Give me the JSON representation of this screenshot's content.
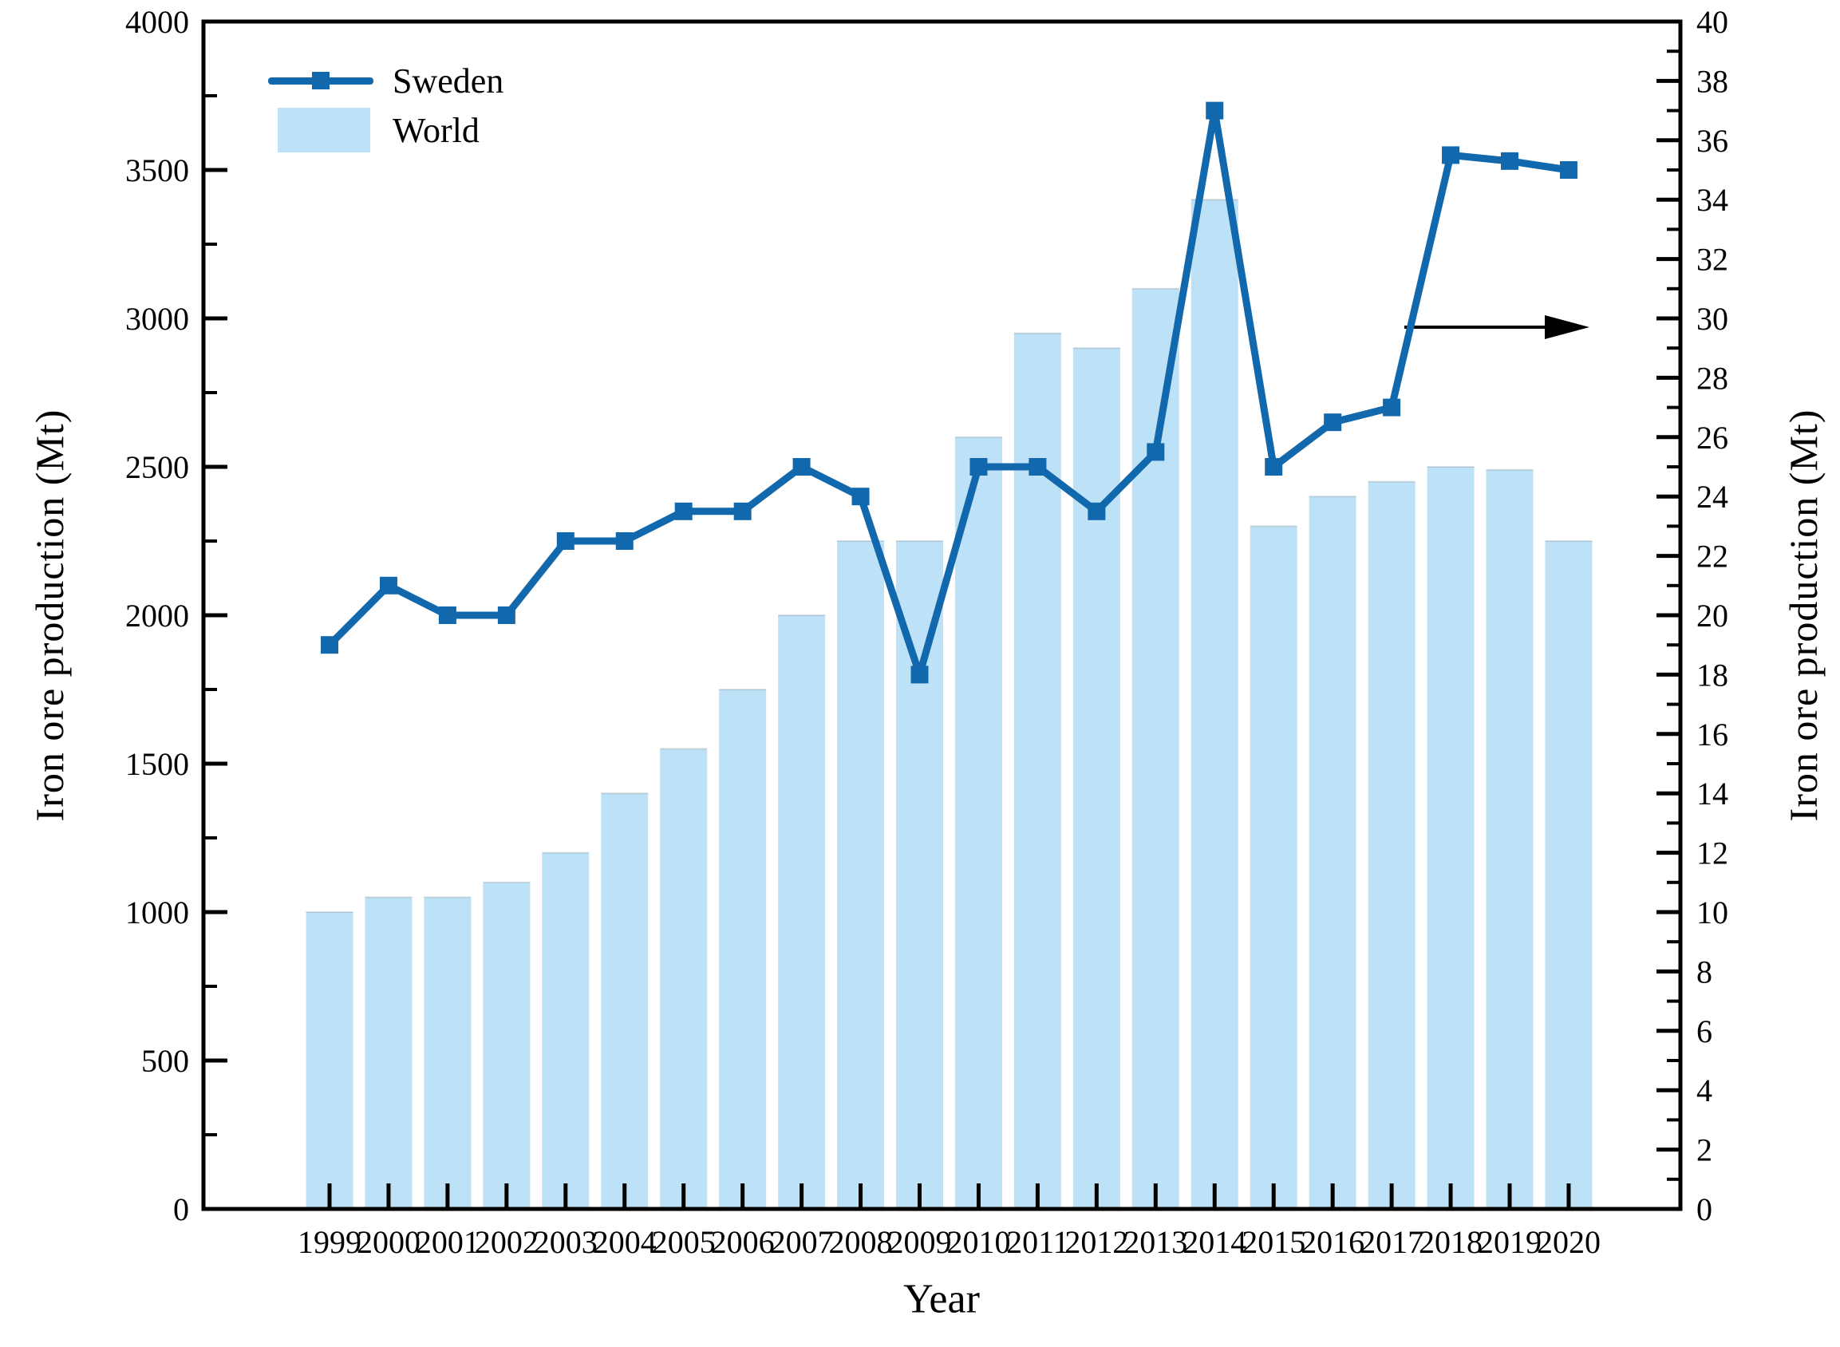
{
  "chart_data": {
    "type": "combo",
    "title": "",
    "categories": [
      "1999",
      "2000",
      "2001",
      "2002",
      "2003",
      "2004",
      "2005",
      "2006",
      "2007",
      "2008",
      "2009",
      "2010",
      "2011",
      "2012",
      "2013",
      "2014",
      "2015",
      "2016",
      "2017",
      "2018",
      "2019",
      "2020"
    ],
    "series": [
      {
        "name": "World",
        "type": "bar",
        "axis": "left",
        "color": "#bde2f7",
        "values": [
          1000,
          1050,
          1050,
          1100,
          1200,
          1400,
          1550,
          1750,
          2000,
          2250,
          2250,
          2600,
          2950,
          2900,
          3100,
          3400,
          2300,
          2400,
          2450,
          2500,
          2490,
          2250
        ]
      },
      {
        "name": "Sweden",
        "type": "line",
        "axis": "right",
        "color": "#1268ac",
        "marker": "square",
        "values": [
          19,
          21,
          20,
          20,
          22.5,
          22.5,
          23.5,
          23.5,
          25,
          24,
          18,
          25,
          25,
          23.5,
          25.5,
          37,
          25,
          26.5,
          27,
          35.5,
          35.3,
          35
        ]
      }
    ],
    "axes": {
      "x": {
        "label": "Year"
      },
      "left": {
        "label": "Iron ore production (Mt)",
        "min": 0,
        "max": 4000,
        "major_step": 500,
        "minor_step": 250
      },
      "right": {
        "label": "Iron ore production (Mt)",
        "min": 0,
        "max": 40,
        "major_step": 2,
        "minor_step": 1
      }
    },
    "legend": {
      "position": "top-left",
      "entries": [
        "Sweden",
        "World"
      ]
    },
    "annotations": [
      {
        "type": "arrow",
        "axis": "right",
        "value": 30,
        "direction": "right",
        "meaning": "line series read on right axis"
      }
    ],
    "grid": false
  },
  "colors": {
    "bar": "#bde2f7",
    "bar_edge": "rgba(0,0,0,0.12)",
    "line": "#1268ac",
    "axis": "#000000",
    "text": "#000000",
    "background": "#ffffff"
  }
}
